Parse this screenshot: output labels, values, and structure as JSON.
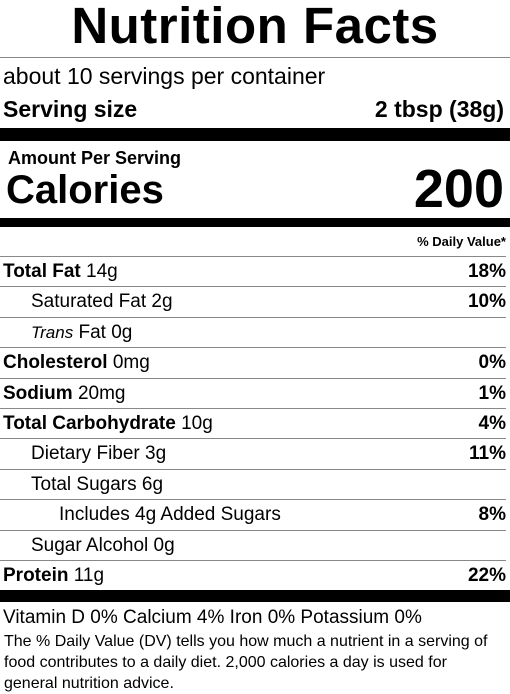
{
  "header": {
    "title": "Nutrition Facts",
    "servings": "about 10 servings per container",
    "serving_size_label": "Serving size",
    "serving_size_value": "2 tbsp (38g)"
  },
  "calories": {
    "amount_label": "Amount Per Serving",
    "label": "Calories",
    "value": "200"
  },
  "daily_value_header": "% Daily Value*",
  "rows": [
    {
      "label": "Total Fat",
      "amount": "14g",
      "dv": "18%",
      "bold": true,
      "indent": 0
    },
    {
      "label": "Saturated Fat",
      "amount": "2g",
      "dv": "10%",
      "bold": false,
      "indent": 1
    },
    {
      "label": "Trans",
      "amount": "Fat 0g",
      "bold": false,
      "italic": true,
      "indent": 1
    },
    {
      "label": "Cholesterol",
      "amount": "0mg",
      "dv": "0%",
      "bold": true,
      "indent": 0
    },
    {
      "label": "Sodium",
      "amount": "20mg",
      "dv": "1%",
      "bold": true,
      "indent": 0
    },
    {
      "label": "Total Carbohydrate",
      "amount": "10g",
      "dv": "4%",
      "bold": true,
      "indent": 0
    },
    {
      "label": "Dietary Fiber",
      "amount": "3g",
      "dv": "11%",
      "bold": false,
      "indent": 1
    },
    {
      "label": "Total Sugars",
      "amount": "6g",
      "bold": false,
      "indent": 1
    },
    {
      "label": "Includes 4g Added Sugars",
      "dv": "8%",
      "bold": false,
      "indent": 2
    },
    {
      "label": "Sugar Alcohol",
      "amount": "0g",
      "bold": false,
      "indent": 1
    },
    {
      "label": "Protein",
      "amount": "11g",
      "dv": "22%",
      "bold": true,
      "indent": 0
    }
  ],
  "vitamins": "Vitamin D 0% Calcium 4% Iron 0% Potassium 0%",
  "footnote": "The % Daily Value (DV) tells you how much a nutrient in a serving of food contributes to a daily diet. 2,000 calories a day is used for general nutrition advice."
}
